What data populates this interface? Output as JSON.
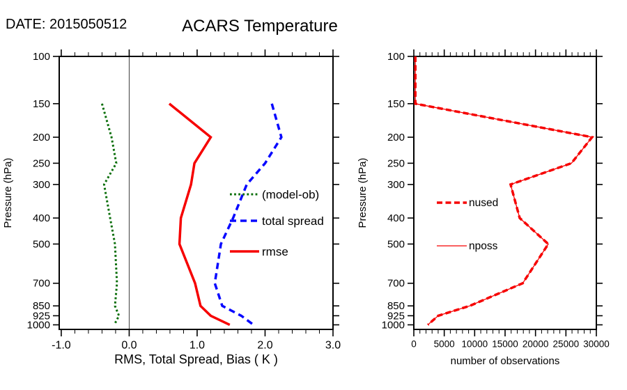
{
  "header": {
    "date_label": "DATE: 2015050512",
    "title": "ACARS Temperature"
  },
  "colors": {
    "bias": "#0a6e0a",
    "spread": "#0808ff",
    "rmse": "#f60000",
    "nused": "#f60000",
    "nposs": "#f60000",
    "frame": "#000000",
    "ref_line": "#3c3c3c"
  },
  "chart_data": [
    {
      "type": "line",
      "panel": "left",
      "xlabel": "RMS, Total Spread, Bias ( K )",
      "ylabel": "Pressure (hPa)",
      "yscale": "log",
      "ylim": [
        100,
        1040
      ],
      "yticks": [
        100,
        150,
        200,
        250,
        300,
        400,
        500,
        700,
        850,
        925,
        1000
      ],
      "xlim": [
        -1.03,
        3.0
      ],
      "xticks": [
        -1.0,
        0.0,
        1.0,
        2.0,
        3.0
      ],
      "xtick_labels": [
        "-1.0",
        "0.0",
        "1.0",
        "2.0",
        "3.0"
      ],
      "x_minor_step": 0.2,
      "ref_line_x": 0.0,
      "levels_hpa": [
        150,
        200,
        250,
        300,
        400,
        500,
        700,
        850,
        925,
        1000
      ],
      "series": [
        {
          "name": "(model-ob)",
          "color_key": "bias",
          "line": "dotted",
          "values": [
            -0.4,
            -0.26,
            -0.19,
            -0.37,
            -0.28,
            -0.21,
            -0.18,
            -0.21,
            -0.15,
            -0.22
          ]
        },
        {
          "name": "total spread",
          "color_key": "spread",
          "line": "dashed",
          "values": [
            2.1,
            2.24,
            2.0,
            1.73,
            1.53,
            1.35,
            1.26,
            1.37,
            1.65,
            1.83
          ]
        },
        {
          "name": "rmse",
          "color_key": "rmse",
          "line": "solid",
          "values": [
            0.59,
            1.2,
            0.96,
            0.91,
            0.76,
            0.74,
            0.97,
            1.05,
            1.2,
            1.48
          ]
        }
      ],
      "legend": {
        "entries": [
          {
            "label": "(model-ob)",
            "series": "(model-ob)"
          },
          {
            "label": "total spread",
            "series": "total spread"
          },
          {
            "label": "rmse",
            "series": "rmse"
          }
        ]
      }
    },
    {
      "type": "line",
      "panel": "right",
      "xlabel": "number of observations",
      "ylabel": "Pressure (hPa)",
      "yscale": "log",
      "ylim": [
        100,
        1040
      ],
      "yticks": [
        100,
        150,
        200,
        250,
        300,
        400,
        500,
        700,
        850,
        925,
        1000
      ],
      "xlim": [
        0,
        30000
      ],
      "xticks": [
        0,
        5000,
        10000,
        15000,
        20000,
        25000,
        30000
      ],
      "xtick_labels": [
        "0",
        "5000",
        "10000",
        "15000",
        "20000",
        "25000",
        "30000"
      ],
      "x_minor_step": 1000,
      "ref_line_x": null,
      "levels_hpa": [
        100,
        150,
        200,
        250,
        300,
        400,
        500,
        700,
        850,
        925,
        1000
      ],
      "series": [
        {
          "name": "nposs",
          "color_key": "nposs",
          "line": "thin",
          "values": [
            250,
            250,
            29300,
            25900,
            15900,
            17400,
            22100,
            17900,
            9200,
            4000,
            2300
          ]
        },
        {
          "name": "nused",
          "color_key": "nused",
          "line": "dashed-thick",
          "values": [
            250,
            250,
            29300,
            25900,
            15900,
            17400,
            22100,
            17900,
            9200,
            4000,
            2300
          ]
        }
      ],
      "legend": {
        "entries": [
          {
            "label": "nused",
            "series": "nused"
          },
          {
            "label": "nposs",
            "series": "nposs"
          }
        ]
      }
    }
  ]
}
